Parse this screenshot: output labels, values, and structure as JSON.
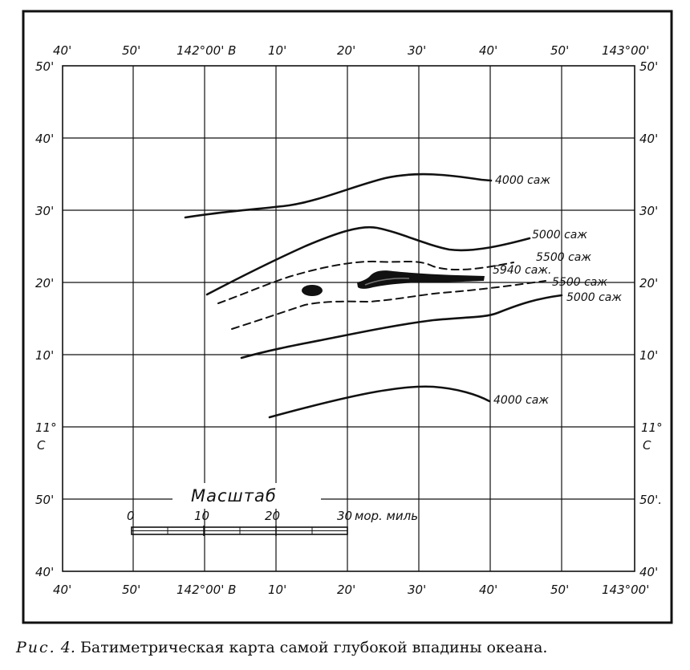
{
  "map": {
    "top_lon_labels": [
      "40'",
      "50'",
      "142°00' В",
      "10'",
      "20'",
      "30'",
      "40'",
      "50'",
      "143°00'"
    ],
    "bottom_lon_labels": [
      "40'",
      "50'",
      "142°00' В",
      "10'",
      "20'",
      "30'",
      "40'",
      "50'",
      "143°00'"
    ],
    "left_lat_labels": [
      "50'",
      "40'",
      "30'",
      "20'",
      "10'",
      "11°",
      "С",
      "50'",
      "40'"
    ],
    "right_lat_labels": [
      "50'",
      "40'",
      "30'",
      "20'",
      "10'",
      "11°",
      "С",
      "50'.",
      "40'"
    ],
    "isobath_labels": {
      "upper_4000": "4000 саж",
      "upper_5000": "5000 саж",
      "upper_5500": "5500 саж",
      "deep_5940": "5940 саж.",
      "lower_5500": "5500 саж",
      "lower_5000": "5000 саж",
      "lower_4000": "4000 саж"
    }
  },
  "scale": {
    "title": "Масштаб",
    "ticks": [
      "0",
      "10",
      "20",
      "30"
    ],
    "unit": "мор. миль"
  },
  "caption": {
    "figure": "Рис.",
    "number": "4.",
    "text": "Батиметрическая карта самой глубокой впадины океана."
  }
}
